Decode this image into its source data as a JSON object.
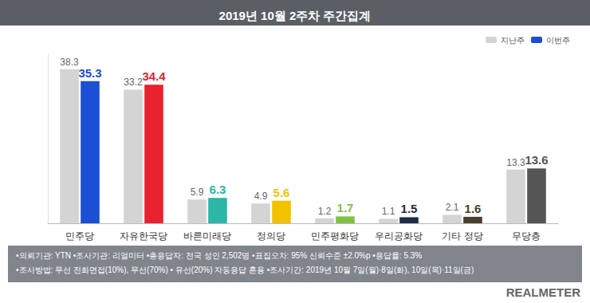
{
  "chart_data": {
    "type": "bar",
    "title": "2019년 10월 2주차 주간집계",
    "categories": [
      "민주당",
      "자유한국당",
      "바른미래당",
      "정의당",
      "민주평화당",
      "우리공화당",
      "기타 정당",
      "무당층"
    ],
    "series": [
      {
        "name": "지난주",
        "color": "#d4d4d4",
        "values": [
          38.3,
          33.2,
          5.9,
          4.9,
          1.2,
          1.1,
          2.1,
          13.3
        ]
      },
      {
        "name": "이번주",
        "colors": [
          "#1a4fd6",
          "#e8222f",
          "#2bb6a8",
          "#f2c200",
          "#7ec242",
          "#1f2a44",
          "#4a3f2b",
          "#555555"
        ],
        "values": [
          35.3,
          34.4,
          6.3,
          5.6,
          1.7,
          1.5,
          1.6,
          13.6
        ]
      }
    ],
    "ylim": [
      0,
      42
    ],
    "tick_labels": "x",
    "grid": false,
    "data_labels": true,
    "legend": "top-right",
    "notes": [
      "•의뢰기관: YTN •조사기관: 리얼미터 •총응답자: 전국 성인 2,502명 •표집오차: 95% 신뢰수준 ±2.0%p •응답률: 5.3%",
      "•조사방법: 무선 전화면접(10%), 무선(70%) • 유선(20%) 자동응답 혼용 •조사기간: 2019년 10월 7일(월)·8일(화), 10일(목)·11일(금)"
    ],
    "source": "REALMETER"
  }
}
